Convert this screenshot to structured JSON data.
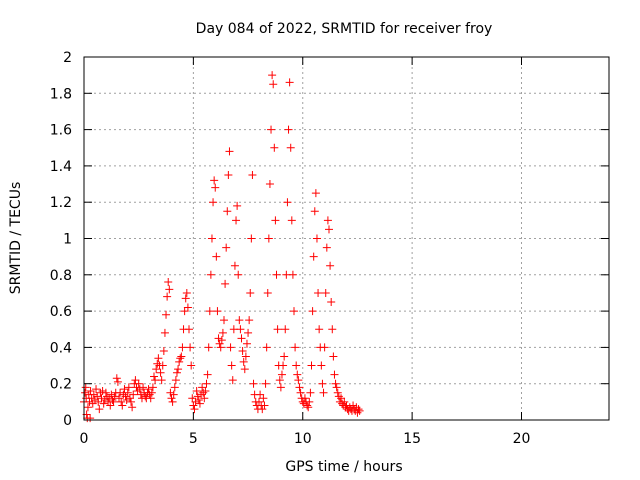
{
  "chart_data": {
    "type": "scatter",
    "title": "Day 084 of 2022, SRMTID for receiver froy",
    "xlabel": "GPS time / hours",
    "ylabel": "SRMTID / TECUs",
    "xlim": [
      0,
      24
    ],
    "ylim": [
      0,
      2
    ],
    "xticks": [
      0,
      5,
      10,
      15,
      20
    ],
    "yticks": [
      0,
      0.2,
      0.4,
      0.6,
      0.8,
      1,
      1.2,
      1.4,
      1.6,
      1.8,
      2
    ],
    "xtick_labels": [
      "0",
      "5",
      "10",
      "15",
      "20"
    ],
    "ytick_labels": [
      "0",
      "0.2",
      "0.4",
      "0.6",
      "0.8",
      "1",
      "1.2",
      "1.4",
      "1.6",
      "1.8",
      "2"
    ],
    "grid": true,
    "marker": "+",
    "color": "#ff0000",
    "series": [
      {
        "name": "SRMTID",
        "points": [
          [
            0.0,
            0.1
          ],
          [
            0.05,
            0.15
          ],
          [
            0.08,
            0.18
          ],
          [
            0.1,
            0.12
          ],
          [
            0.12,
            0.03
          ],
          [
            0.15,
            0.01
          ],
          [
            0.18,
            0.07
          ],
          [
            0.22,
            0.14
          ],
          [
            0.25,
            0.1
          ],
          [
            0.28,
            0.01
          ],
          [
            0.3,
            0.16
          ],
          [
            0.35,
            0.12
          ],
          [
            0.4,
            0.09
          ],
          [
            0.45,
            0.14
          ],
          [
            0.5,
            0.11
          ],
          [
            0.55,
            0.17
          ],
          [
            0.6,
            0.13
          ],
          [
            0.65,
            0.1
          ],
          [
            0.7,
            0.06
          ],
          [
            0.75,
            0.15
          ],
          [
            0.8,
            0.12
          ],
          [
            0.85,
            0.16
          ],
          [
            0.9,
            0.09
          ],
          [
            0.95,
            0.11
          ],
          [
            1.0,
            0.15
          ],
          [
            1.05,
            0.13
          ],
          [
            1.1,
            0.1
          ],
          [
            1.15,
            0.12
          ],
          [
            1.2,
            0.08
          ],
          [
            1.25,
            0.14
          ],
          [
            1.3,
            0.11
          ],
          [
            1.35,
            0.1
          ],
          [
            1.4,
            0.13
          ],
          [
            1.45,
            0.15
          ],
          [
            1.5,
            0.23
          ],
          [
            1.55,
            0.21
          ],
          [
            1.6,
            0.12
          ],
          [
            1.65,
            0.15
          ],
          [
            1.7,
            0.1
          ],
          [
            1.75,
            0.08
          ],
          [
            1.8,
            0.14
          ],
          [
            1.85,
            0.17
          ],
          [
            1.9,
            0.13
          ],
          [
            1.95,
            0.11
          ],
          [
            2.0,
            0.15
          ],
          [
            2.05,
            0.18
          ],
          [
            2.1,
            0.12
          ],
          [
            2.15,
            0.1
          ],
          [
            2.2,
            0.07
          ],
          [
            2.25,
            0.14
          ],
          [
            2.3,
            0.2
          ],
          [
            2.35,
            0.22
          ],
          [
            2.4,
            0.18
          ],
          [
            2.45,
            0.16
          ],
          [
            2.5,
            0.2
          ],
          [
            2.55,
            0.17
          ],
          [
            2.6,
            0.14
          ],
          [
            2.65,
            0.12
          ],
          [
            2.7,
            0.18
          ],
          [
            2.75,
            0.15
          ],
          [
            2.8,
            0.13
          ],
          [
            2.85,
            0.12
          ],
          [
            2.9,
            0.15
          ],
          [
            2.95,
            0.17
          ],
          [
            3.0,
            0.14
          ],
          [
            3.05,
            0.12
          ],
          [
            3.1,
            0.15
          ],
          [
            3.15,
            0.18
          ],
          [
            3.2,
            0.24
          ],
          [
            3.25,
            0.22
          ],
          [
            3.3,
            0.28
          ],
          [
            3.35,
            0.31
          ],
          [
            3.4,
            0.34
          ],
          [
            3.45,
            0.3
          ],
          [
            3.5,
            0.26
          ],
          [
            3.55,
            0.22
          ],
          [
            3.6,
            0.3
          ],
          [
            3.65,
            0.38
          ],
          [
            3.7,
            0.48
          ],
          [
            3.75,
            0.58
          ],
          [
            3.8,
            0.68
          ],
          [
            3.85,
            0.76
          ],
          [
            3.9,
            0.72
          ],
          [
            3.95,
            0.15
          ],
          [
            4.0,
            0.12
          ],
          [
            4.05,
            0.1
          ],
          [
            4.1,
            0.14
          ],
          [
            4.15,
            0.18
          ],
          [
            4.2,
            0.22
          ],
          [
            4.25,
            0.26
          ],
          [
            4.3,
            0.28
          ],
          [
            4.35,
            0.32
          ],
          [
            4.4,
            0.34
          ],
          [
            4.45,
            0.35
          ],
          [
            4.5,
            0.4
          ],
          [
            4.55,
            0.5
          ],
          [
            4.6,
            0.6
          ],
          [
            4.65,
            0.67
          ],
          [
            4.7,
            0.7
          ],
          [
            4.75,
            0.62
          ],
          [
            4.8,
            0.5
          ],
          [
            4.85,
            0.4
          ],
          [
            4.9,
            0.3
          ],
          [
            4.95,
            0.12
          ],
          [
            5.0,
            0.08
          ],
          [
            5.05,
            0.06
          ],
          [
            5.1,
            0.1
          ],
          [
            5.15,
            0.16
          ],
          [
            5.2,
            0.13
          ],
          [
            5.25,
            0.11
          ],
          [
            5.3,
            0.09
          ],
          [
            5.35,
            0.14
          ],
          [
            5.4,
            0.18
          ],
          [
            5.45,
            0.15
          ],
          [
            5.5,
            0.12
          ],
          [
            5.55,
            0.16
          ],
          [
            5.6,
            0.2
          ],
          [
            5.65,
            0.25
          ],
          [
            5.7,
            0.4
          ],
          [
            5.75,
            0.6
          ],
          [
            5.8,
            0.8
          ],
          [
            5.85,
            1.0
          ],
          [
            5.9,
            1.2
          ],
          [
            5.95,
            1.32
          ],
          [
            6.0,
            1.28
          ],
          [
            6.05,
            0.9
          ],
          [
            6.1,
            0.6
          ],
          [
            6.15,
            0.45
          ],
          [
            6.2,
            0.42
          ],
          [
            6.25,
            0.4
          ],
          [
            6.3,
            0.44
          ],
          [
            6.35,
            0.48
          ],
          [
            6.4,
            0.55
          ],
          [
            6.45,
            0.75
          ],
          [
            6.5,
            0.95
          ],
          [
            6.55,
            1.15
          ],
          [
            6.6,
            1.35
          ],
          [
            6.65,
            1.48
          ],
          [
            6.7,
            0.4
          ],
          [
            6.75,
            0.3
          ],
          [
            6.8,
            0.22
          ],
          [
            6.85,
            0.5
          ],
          [
            6.9,
            0.85
          ],
          [
            6.95,
            1.1
          ],
          [
            7.0,
            1.18
          ],
          [
            7.05,
            0.8
          ],
          [
            7.1,
            0.55
          ],
          [
            7.15,
            0.5
          ],
          [
            7.2,
            0.45
          ],
          [
            7.25,
            0.38
          ],
          [
            7.3,
            0.32
          ],
          [
            7.35,
            0.28
          ],
          [
            7.4,
            0.35
          ],
          [
            7.45,
            0.42
          ],
          [
            7.5,
            0.48
          ],
          [
            7.55,
            0.55
          ],
          [
            7.6,
            0.7
          ],
          [
            7.65,
            1.0
          ],
          [
            7.7,
            1.35
          ],
          [
            7.75,
            0.2
          ],
          [
            7.8,
            0.14
          ],
          [
            7.85,
            0.1
          ],
          [
            7.9,
            0.08
          ],
          [
            7.95,
            0.06
          ],
          [
            8.0,
            0.1
          ],
          [
            8.05,
            0.14
          ],
          [
            8.1,
            0.08
          ],
          [
            8.15,
            0.06
          ],
          [
            8.2,
            0.12
          ],
          [
            8.25,
            0.08
          ],
          [
            8.3,
            0.2
          ],
          [
            8.35,
            0.4
          ],
          [
            8.4,
            0.7
          ],
          [
            8.45,
            1.0
          ],
          [
            8.5,
            1.3
          ],
          [
            8.55,
            1.6
          ],
          [
            8.6,
            1.9
          ],
          [
            8.65,
            1.85
          ],
          [
            8.7,
            1.5
          ],
          [
            8.75,
            1.1
          ],
          [
            8.8,
            0.8
          ],
          [
            8.85,
            0.5
          ],
          [
            8.9,
            0.3
          ],
          [
            8.95,
            0.22
          ],
          [
            9.0,
            0.18
          ],
          [
            9.05,
            0.25
          ],
          [
            9.1,
            0.3
          ],
          [
            9.15,
            0.35
          ],
          [
            9.2,
            0.5
          ],
          [
            9.25,
            0.8
          ],
          [
            9.3,
            1.2
          ],
          [
            9.35,
            1.6
          ],
          [
            9.4,
            1.86
          ],
          [
            9.45,
            1.5
          ],
          [
            9.5,
            1.1
          ],
          [
            9.55,
            0.8
          ],
          [
            9.6,
            0.6
          ],
          [
            9.65,
            0.4
          ],
          [
            9.7,
            0.3
          ],
          [
            9.75,
            0.25
          ],
          [
            9.8,
            0.22
          ],
          [
            9.85,
            0.18
          ],
          [
            9.9,
            0.15
          ],
          [
            9.95,
            0.12
          ],
          [
            10.0,
            0.1
          ],
          [
            10.05,
            0.09
          ],
          [
            10.1,
            0.12
          ],
          [
            10.15,
            0.1
          ],
          [
            10.2,
            0.08
          ],
          [
            10.25,
            0.07
          ],
          [
            10.3,
            0.1
          ],
          [
            10.35,
            0.15
          ],
          [
            10.4,
            0.3
          ],
          [
            10.45,
            0.6
          ],
          [
            10.5,
            0.9
          ],
          [
            10.55,
            1.15
          ],
          [
            10.6,
            1.25
          ],
          [
            10.65,
            1.0
          ],
          [
            10.7,
            0.7
          ],
          [
            10.75,
            0.5
          ],
          [
            10.8,
            0.4
          ],
          [
            10.85,
            0.3
          ],
          [
            10.9,
            0.2
          ],
          [
            10.95,
            0.15
          ],
          [
            11.0,
            0.4
          ],
          [
            11.05,
            0.7
          ],
          [
            11.1,
            0.95
          ],
          [
            11.15,
            1.1
          ],
          [
            11.2,
            1.05
          ],
          [
            11.25,
            0.85
          ],
          [
            11.3,
            0.65
          ],
          [
            11.35,
            0.5
          ],
          [
            11.4,
            0.35
          ],
          [
            11.45,
            0.25
          ],
          [
            11.5,
            0.2
          ],
          [
            11.55,
            0.18
          ],
          [
            11.6,
            0.15
          ],
          [
            11.65,
            0.13
          ],
          [
            11.7,
            0.1
          ],
          [
            11.75,
            0.12
          ],
          [
            11.8,
            0.09
          ],
          [
            11.85,
            0.08
          ],
          [
            11.9,
            0.1
          ],
          [
            11.95,
            0.07
          ],
          [
            12.0,
            0.08
          ],
          [
            12.05,
            0.06
          ],
          [
            12.1,
            0.05
          ],
          [
            12.15,
            0.07
          ],
          [
            12.2,
            0.06
          ],
          [
            12.25,
            0.05
          ],
          [
            12.3,
            0.08
          ],
          [
            12.35,
            0.06
          ],
          [
            12.4,
            0.05
          ],
          [
            12.45,
            0.07
          ],
          [
            12.5,
            0.04
          ],
          [
            12.55,
            0.06
          ],
          [
            12.6,
            0.05
          ]
        ]
      }
    ]
  }
}
